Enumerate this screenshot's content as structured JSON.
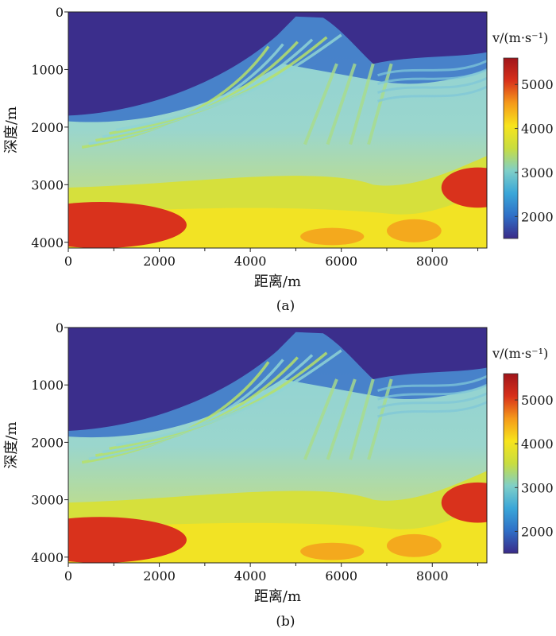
{
  "chart_data": [
    {
      "type": "heatmap",
      "panel": "a",
      "caption": "(a)",
      "xlabel": "距离/m",
      "ylabel": "深度/m",
      "x_ticks": [
        0,
        2000,
        4000,
        6000,
        8000
      ],
      "y_ticks": [
        0,
        1000,
        2000,
        3000,
        4000
      ],
      "xlim": [
        0,
        9200
      ],
      "ylim": [
        0,
        4100
      ],
      "colorbar": {
        "title": "v/(m·s⁻¹)",
        "ticks": [
          2000,
          3000,
          4000,
          5000
        ],
        "range": [
          1500,
          5600
        ],
        "colors": [
          "#3a2a88",
          "#2f6fc7",
          "#3aa6d8",
          "#7fcfc8",
          "#c8dd40",
          "#f7e41c",
          "#f59a1a",
          "#d8301a",
          "#a0141a"
        ]
      }
    },
    {
      "type": "heatmap",
      "panel": "b",
      "caption": "(b)",
      "xlabel": "距离/m",
      "ylabel": "深度/m",
      "x_ticks": [
        0,
        2000,
        4000,
        6000,
        8000
      ],
      "y_ticks": [
        0,
        1000,
        2000,
        3000,
        4000
      ],
      "xlim": [
        0,
        9200
      ],
      "ylim": [
        0,
        4100
      ],
      "colorbar": {
        "title": "v/(m·s⁻¹)",
        "ticks": [
          2000,
          3000,
          4000,
          5000
        ],
        "range": [
          1500,
          5600
        ],
        "colors": [
          "#3a2a88",
          "#2f6fc7",
          "#3aa6d8",
          "#7fcfc8",
          "#c8dd40",
          "#f7e41c",
          "#f59a1a",
          "#d8301a",
          "#a0141a"
        ]
      }
    }
  ]
}
